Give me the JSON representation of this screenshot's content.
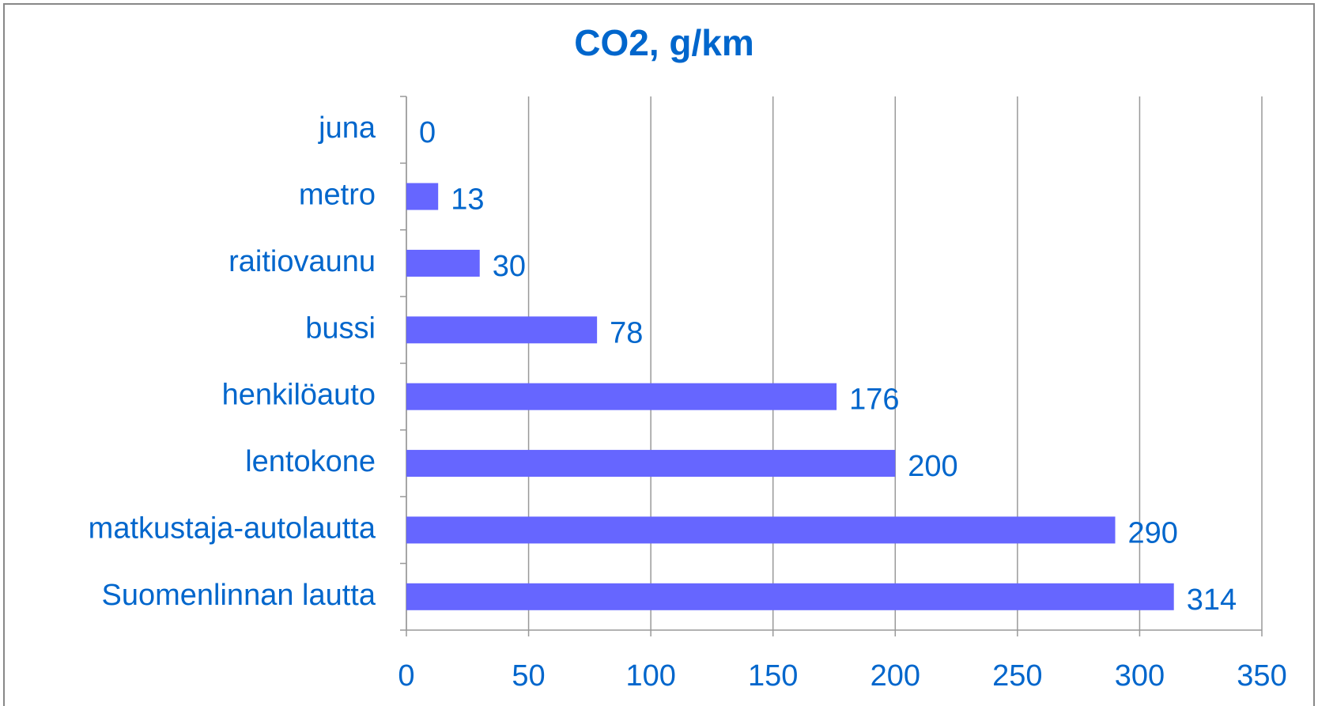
{
  "chart_data": {
    "type": "bar",
    "orientation": "horizontal",
    "title": "CO2, g/km",
    "categories": [
      "juna",
      "metro",
      "raitiovaunu",
      "bussi",
      "henkilöauto",
      "lentokone",
      "matkustaja-autolautta",
      "Suomenlinnan lautta"
    ],
    "values": [
      0,
      13,
      30,
      78,
      176,
      200,
      290,
      314
    ],
    "color": "#6666ff",
    "xlim": [
      0,
      350
    ],
    "xticks": [
      0,
      50,
      100,
      150,
      200,
      250,
      300,
      350
    ],
    "grid": true
  }
}
